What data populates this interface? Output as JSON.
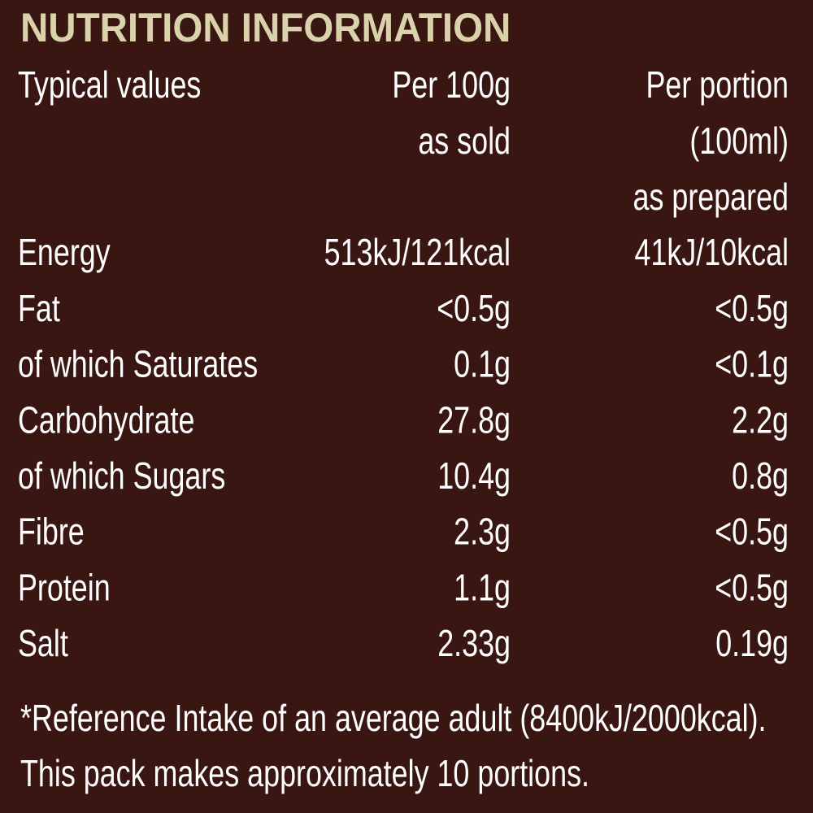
{
  "header": {
    "title": "NUTRITION INFORMATION"
  },
  "table": {
    "columns": [
      [
        "Typical values"
      ],
      [
        "Per 100g",
        "as sold"
      ],
      [
        "Per portion",
        "(100ml)",
        "as prepared"
      ]
    ],
    "rows": [
      [
        "Energy",
        "513kJ/121kcal",
        "41kJ/10kcal"
      ],
      [
        "Fat",
        "<0.5g",
        "<0.5g"
      ],
      [
        "of which Saturates",
        "0.1g",
        "<0.1g"
      ],
      [
        "Carbohydrate",
        "27.8g",
        "2.2g"
      ],
      [
        "of which Sugars",
        "10.4g",
        "0.8g"
      ],
      [
        "Fibre",
        "2.3g",
        "<0.5g"
      ],
      [
        "Protein",
        "1.1g",
        "<0.5g"
      ],
      [
        "Salt",
        "2.33g",
        "0.19g"
      ]
    ]
  },
  "footnotes": [
    "*Reference Intake of an average adult (8400kJ/2000kcal).",
    "This pack makes approximately 10 portions."
  ]
}
